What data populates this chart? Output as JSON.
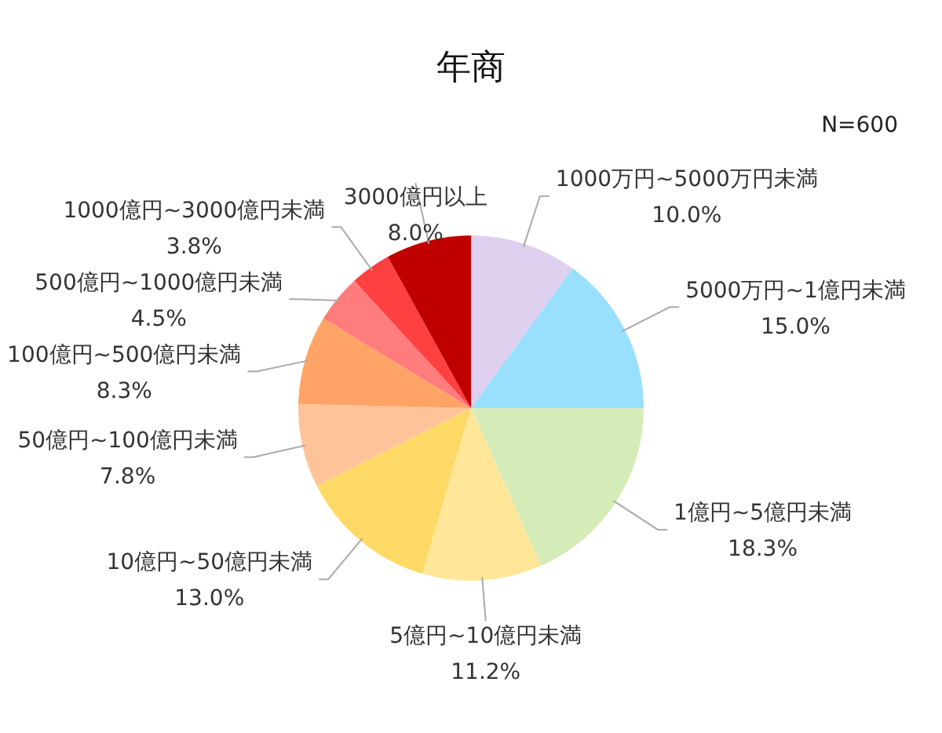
{
  "chart_data": {
    "type": "pie",
    "title": "年商",
    "annotations": [
      "N=600"
    ],
    "categories": [
      "1000万円~5000万円未満",
      "5000万円~1億円未満",
      "1億円~5億円未満",
      "5億円~10億円未満",
      "10億円~50億円未満",
      "50億円~100億円未満",
      "100億円~500億円未満",
      "500億円~1000億円未満",
      "1000億円~3000億円未満",
      "3000億円以上"
    ],
    "values": [
      10.0,
      15.0,
      18.3,
      11.2,
      13.0,
      7.8,
      8.3,
      4.5,
      3.8,
      8.0
    ],
    "colors": [
      "#e0d0f0",
      "#99e0ff",
      "#d5ecb8",
      "#ffe699",
      "#ffd966",
      "#ffc399",
      "#ffa366",
      "#ff7c7c",
      "#ff4040",
      "#c00000"
    ],
    "value_labels": [
      "10.0%",
      "15.0%",
      "18.3%",
      "11.2%",
      "13.0%",
      "7.8%",
      "8.3%",
      "4.5%",
      "3.8%",
      "8.0%"
    ],
    "legend": false
  }
}
